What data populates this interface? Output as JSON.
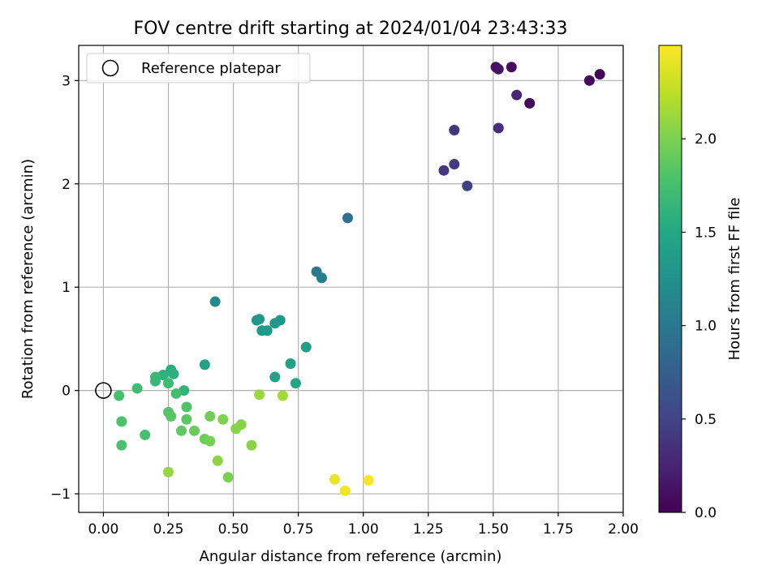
{
  "chart_data": {
    "type": "scatter",
    "title": "FOV centre drift starting at 2024/01/04 23:43:33",
    "xlabel": "Angular distance from reference (arcmin)",
    "ylabel": "Rotation from reference (arcmin)",
    "xlim": [
      -0.095,
      2.0
    ],
    "ylim": [
      -1.18,
      3.34
    ],
    "xticks": [
      0.0,
      0.25,
      0.5,
      0.75,
      1.0,
      1.25,
      1.5,
      1.75,
      2.0
    ],
    "xtick_labels": [
      "0.00",
      "0.25",
      "0.50",
      "0.75",
      "1.00",
      "1.25",
      "1.50",
      "1.75",
      "2.00"
    ],
    "yticks": [
      -1,
      0,
      1,
      2,
      3
    ],
    "ytick_labels": [
      "−1",
      "0",
      "1",
      "2",
      "3"
    ],
    "grid": true,
    "legend": {
      "placement": "top-left",
      "entries": [
        {
          "label": "Reference platepar",
          "marker": "open-circle"
        }
      ]
    },
    "reference_point": {
      "x": 0.0,
      "y": 0.0
    },
    "colorbar": {
      "label": "Hours from first FF file",
      "range": [
        0.0,
        2.5
      ],
      "ticks": [
        0.0,
        0.5,
        1.0,
        1.5,
        2.0
      ],
      "tick_labels": [
        "0.0",
        "0.5",
        "1.0",
        "1.5",
        "2.0"
      ],
      "colormap": "viridis"
    },
    "points": [
      {
        "x": 1.91,
        "y": 3.06,
        "c": 0.02
      },
      {
        "x": 1.87,
        "y": 3.0,
        "c": 0.04
      },
      {
        "x": 1.64,
        "y": 2.78,
        "c": 0.06
      },
      {
        "x": 1.57,
        "y": 3.13,
        "c": 0.08
      },
      {
        "x": 1.51,
        "y": 3.13,
        "c": 0.1
      },
      {
        "x": 1.52,
        "y": 3.11,
        "c": 0.12
      },
      {
        "x": 1.59,
        "y": 2.86,
        "c": 0.28
      },
      {
        "x": 1.52,
        "y": 2.54,
        "c": 0.33
      },
      {
        "x": 1.35,
        "y": 2.52,
        "c": 0.38
      },
      {
        "x": 1.35,
        "y": 2.19,
        "c": 0.43
      },
      {
        "x": 1.31,
        "y": 2.13,
        "c": 0.4
      },
      {
        "x": 1.4,
        "y": 1.98,
        "c": 0.47
      },
      {
        "x": 0.94,
        "y": 1.67,
        "c": 0.92
      },
      {
        "x": 0.82,
        "y": 1.15,
        "c": 1.02
      },
      {
        "x": 0.84,
        "y": 1.09,
        "c": 1.06
      },
      {
        "x": 0.43,
        "y": 0.86,
        "c": 1.18
      },
      {
        "x": 0.59,
        "y": 0.68,
        "c": 1.28
      },
      {
        "x": 0.6,
        "y": 0.69,
        "c": 1.3
      },
      {
        "x": 0.68,
        "y": 0.68,
        "c": 1.31
      },
      {
        "x": 0.66,
        "y": 0.65,
        "c": 1.32
      },
      {
        "x": 0.61,
        "y": 0.58,
        "c": 1.35
      },
      {
        "x": 0.63,
        "y": 0.58,
        "c": 1.36
      },
      {
        "x": 0.78,
        "y": 0.42,
        "c": 1.38
      },
      {
        "x": 0.72,
        "y": 0.26,
        "c": 1.4
      },
      {
        "x": 0.39,
        "y": 0.25,
        "c": 1.42
      },
      {
        "x": 0.66,
        "y": 0.13,
        "c": 1.44
      },
      {
        "x": 0.74,
        "y": 0.07,
        "c": 1.46
      },
      {
        "x": 0.26,
        "y": 0.2,
        "c": 1.55
      },
      {
        "x": 0.27,
        "y": 0.16,
        "c": 1.58
      },
      {
        "x": 0.23,
        "y": 0.15,
        "c": 1.6
      },
      {
        "x": 0.2,
        "y": 0.13,
        "c": 1.68
      },
      {
        "x": 0.2,
        "y": 0.09,
        "c": 1.66
      },
      {
        "x": 0.25,
        "y": 0.07,
        "c": 1.7
      },
      {
        "x": 0.13,
        "y": 0.02,
        "c": 1.72
      },
      {
        "x": 0.31,
        "y": 0.0,
        "c": 1.62
      },
      {
        "x": 0.28,
        "y": -0.03,
        "c": 1.74
      },
      {
        "x": 0.06,
        "y": -0.05,
        "c": 1.76
      },
      {
        "x": 0.32,
        "y": -0.16,
        "c": 1.8
      },
      {
        "x": 0.25,
        "y": -0.21,
        "c": 1.82
      },
      {
        "x": 0.26,
        "y": -0.25,
        "c": 1.84
      },
      {
        "x": 0.32,
        "y": -0.28,
        "c": 1.86
      },
      {
        "x": 0.41,
        "y": -0.25,
        "c": 1.96
      },
      {
        "x": 0.46,
        "y": -0.28,
        "c": 2.02
      },
      {
        "x": 0.07,
        "y": -0.3,
        "c": 1.78
      },
      {
        "x": 0.53,
        "y": -0.33,
        "c": 2.04
      },
      {
        "x": 0.51,
        "y": -0.37,
        "c": 2.05
      },
      {
        "x": 0.3,
        "y": -0.39,
        "c": 1.88
      },
      {
        "x": 0.35,
        "y": -0.39,
        "c": 1.92
      },
      {
        "x": 0.16,
        "y": -0.43,
        "c": 1.76
      },
      {
        "x": 0.39,
        "y": -0.47,
        "c": 1.94
      },
      {
        "x": 0.41,
        "y": -0.49,
        "c": 1.98
      },
      {
        "x": 0.07,
        "y": -0.53,
        "c": 1.78
      },
      {
        "x": 0.57,
        "y": -0.53,
        "c": 2.06
      },
      {
        "x": 0.44,
        "y": -0.68,
        "c": 2.08
      },
      {
        "x": 0.25,
        "y": -0.79,
        "c": 2.1
      },
      {
        "x": 0.48,
        "y": -0.84,
        "c": 2.0
      },
      {
        "x": 0.6,
        "y": -0.04,
        "c": 2.12
      },
      {
        "x": 0.69,
        "y": -0.05,
        "c": 2.15
      },
      {
        "x": 0.89,
        "y": -0.86,
        "c": 2.42
      },
      {
        "x": 0.93,
        "y": -0.97,
        "c": 2.45
      },
      {
        "x": 1.02,
        "y": -0.87,
        "c": 2.48
      }
    ]
  }
}
